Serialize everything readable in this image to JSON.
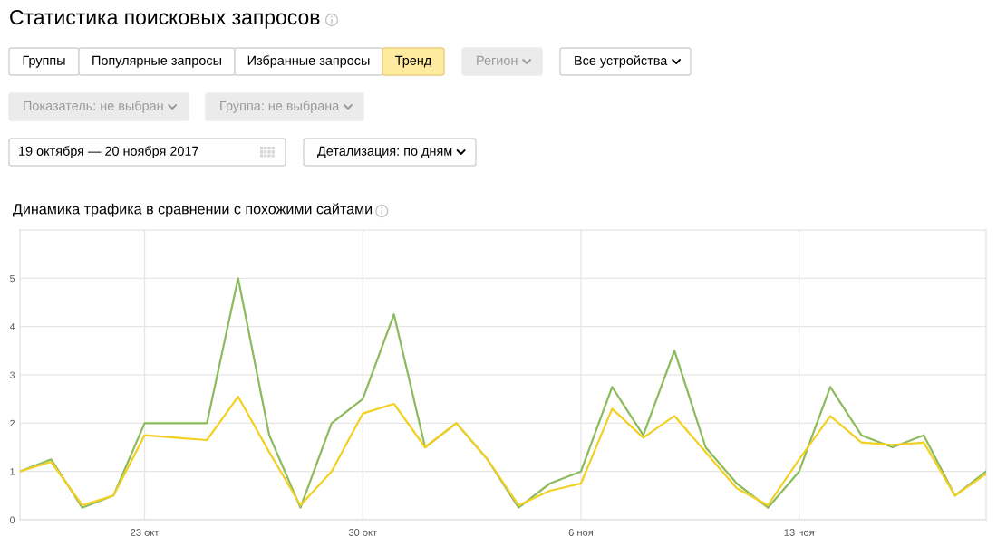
{
  "chart_data": {
    "type": "line",
    "title": "Статистика поисковых запросов",
    "subtitle": "Динамика трафика в сравнении с похожими сайтами",
    "annotations": [
      "Группы",
      "Популярные запросы",
      "Избранные запросы",
      "Тренд",
      "Регион",
      "Все устройства",
      "Показатель: не выбран",
      "Группа: не выбрана",
      "19 октября — 20 ноября 2017",
      "Детализация: по дням"
    ],
    "x": [
      "2017-10-19",
      "2017-10-20",
      "2017-10-21",
      "2017-10-22",
      "2017-10-23",
      "2017-10-24",
      "2017-10-25",
      "2017-10-26",
      "2017-10-27",
      "2017-10-28",
      "2017-10-29",
      "2017-10-30",
      "2017-10-31",
      "2017-11-01",
      "2017-11-02",
      "2017-11-03",
      "2017-11-04",
      "2017-11-05",
      "2017-11-06",
      "2017-11-07",
      "2017-11-08",
      "2017-11-09",
      "2017-11-10",
      "2017-11-11",
      "2017-11-12",
      "2017-11-13",
      "2017-11-14",
      "2017-11-15",
      "2017-11-16",
      "2017-11-17",
      "2017-11-18",
      "2017-11-19"
    ],
    "series": [
      {
        "color": "#8cbb5e",
        "values": [
          1.0,
          1.25,
          0.25,
          0.5,
          2.0,
          2.0,
          2.0,
          5.0,
          1.75,
          0.25,
          2.0,
          2.5,
          4.25,
          1.5,
          2.0,
          1.25,
          0.25,
          0.75,
          1.0,
          2.75,
          1.75,
          3.5,
          1.5,
          0.75,
          0.25,
          1.0,
          2.75,
          1.75,
          1.5,
          1.75,
          0.5,
          1.0
        ]
      },
      {
        "color": "#f2d024",
        "values": [
          1.0,
          1.2,
          0.3,
          0.5,
          1.75,
          1.7,
          1.65,
          2.55,
          1.4,
          0.3,
          1.0,
          2.2,
          2.4,
          1.5,
          2.0,
          1.25,
          0.3,
          0.6,
          0.75,
          2.3,
          1.7,
          2.15,
          1.4,
          0.65,
          0.3,
          1.25,
          2.15,
          1.6,
          1.55,
          1.6,
          0.5,
          0.95
        ]
      }
    ],
    "xlim": [
      "2017-10-19",
      "2017-11-19"
    ],
    "xticks": [
      {
        "value": "2017-10-23",
        "label": "23 окт"
      },
      {
        "value": "2017-10-30",
        "label": "30 окт"
      },
      {
        "value": "2017-11-06",
        "label": "6 ноя"
      },
      {
        "value": "2017-11-13",
        "label": "13 ноя"
      }
    ],
    "ylim": [
      0,
      6
    ],
    "yticks": [
      0,
      1,
      2,
      3,
      4,
      5
    ],
    "grid": true
  }
}
